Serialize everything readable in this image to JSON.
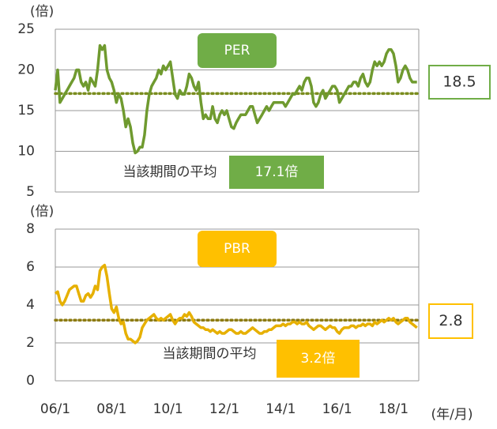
{
  "chart_data": [
    {
      "type": "line",
      "title": "PER",
      "unit_label": "(倍)",
      "color": "#6f9a2f",
      "title_color": "#70ad47",
      "avg_color": "#7a8c1e",
      "ylim": [
        5,
        25
      ],
      "yticks": [
        5,
        10,
        15,
        20,
        25
      ],
      "grid": true,
      "average": 17.1,
      "average_label": "17.1倍",
      "average_caption": "当該期間の平均",
      "latest": 18.5,
      "values": [
        17.5,
        20,
        16,
        16.5,
        17,
        17.5,
        18,
        18.5,
        19,
        20,
        20,
        18.5,
        18,
        18.5,
        17.5,
        19,
        18.5,
        18,
        20,
        23,
        22.5,
        23,
        20,
        19,
        18.5,
        17.5,
        16,
        17,
        16.5,
        15,
        13,
        14,
        13,
        11,
        9.8,
        10,
        10.5,
        10.5,
        12,
        15,
        17,
        18,
        18.5,
        19,
        20,
        19.5,
        20.5,
        20,
        20.5,
        21,
        19,
        17,
        16.5,
        17.5,
        17,
        17,
        18,
        19.5,
        19,
        18,
        17.5,
        18.5,
        16,
        14,
        14.5,
        14,
        14,
        15.5,
        14,
        13.5,
        14.5,
        15,
        14.5,
        15,
        14,
        13,
        12.8,
        13.5,
        14,
        14.5,
        14.5,
        14.5,
        15,
        15.5,
        15.5,
        14.5,
        13.5,
        14,
        14.5,
        15,
        15.5,
        15,
        15.5,
        16,
        16,
        16,
        16,
        16,
        15.5,
        16,
        16.5,
        17,
        17,
        17.5,
        18,
        17.5,
        18.5,
        19,
        19,
        18,
        16,
        15.5,
        16,
        17,
        17.5,
        16.5,
        17,
        17.5,
        18,
        18,
        17.5,
        16,
        16.5,
        17,
        17.5,
        18,
        18,
        18.5,
        18.5,
        18,
        19,
        19.5,
        18.5,
        18,
        18.5,
        20,
        21,
        20.5,
        21,
        20.5,
        21,
        22,
        22.5,
        22.5,
        22,
        20.5,
        18.5,
        19,
        20,
        20.5,
        20,
        19,
        18.5,
        18.5,
        18.5
      ]
    },
    {
      "type": "line",
      "title": "PBR",
      "unit_label": "(倍)",
      "color": "#e6b000",
      "title_color": "#ffc000",
      "avg_color": "#8c7a10",
      "ylim": [
        0,
        8
      ],
      "yticks": [
        0,
        2,
        4,
        6,
        8
      ],
      "grid": true,
      "average": 3.2,
      "average_label": "3.2倍",
      "average_caption": "当該期間の平均",
      "latest": 2.8,
      "x_label": "(年/月)",
      "categories": [
        "06/1",
        null,
        null,
        null,
        null,
        null,
        null,
        null,
        null,
        null,
        null,
        null,
        null,
        null,
        null,
        null,
        null,
        null,
        null,
        null,
        null,
        null,
        null,
        null,
        "08/1",
        null,
        null,
        null,
        null,
        null,
        null,
        null,
        null,
        null,
        null,
        null,
        null,
        null,
        null,
        null,
        null,
        null,
        null,
        null,
        null,
        null,
        null,
        null,
        "10/1",
        null,
        null,
        null,
        null,
        null,
        null,
        null,
        null,
        null,
        null,
        null,
        null,
        null,
        null,
        null,
        null,
        null,
        null,
        null,
        null,
        null,
        null,
        null,
        "12/1",
        null,
        null,
        null,
        null,
        null,
        null,
        null,
        null,
        null,
        null,
        null,
        null,
        null,
        null,
        null,
        null,
        null,
        null,
        null,
        null,
        null,
        null,
        null,
        "14/1",
        null,
        null,
        null,
        null,
        null,
        null,
        null,
        null,
        null,
        null,
        null,
        null,
        null,
        null,
        null,
        null,
        null,
        null,
        null,
        null,
        null,
        null,
        null,
        "16/1",
        null,
        null,
        null,
        null,
        null,
        null,
        null,
        null,
        null,
        null,
        null,
        null,
        null,
        null,
        null,
        null,
        null,
        null,
        null,
        null,
        null,
        null,
        null,
        "18/1",
        null,
        null,
        null,
        null,
        null,
        null,
        null,
        null,
        null,
        null
      ],
      "values": [
        4.6,
        4.7,
        4.2,
        4.0,
        4.2,
        4.5,
        4.8,
        4.9,
        5.0,
        5.0,
        4.6,
        4.2,
        4.2,
        4.5,
        4.6,
        4.4,
        4.6,
        5.0,
        4.8,
        5.8,
        6.0,
        6.1,
        5.5,
        4.6,
        3.8,
        3.6,
        3.9,
        3.3,
        3.0,
        3.1,
        2.5,
        2.2,
        2.2,
        2.1,
        2.0,
        2.1,
        2.3,
        2.8,
        3.0,
        3.2,
        3.3,
        3.4,
        3.5,
        3.3,
        3.2,
        3.3,
        3.2,
        3.3,
        3.4,
        3.5,
        3.2,
        3.0,
        3.2,
        3.3,
        3.3,
        3.5,
        3.4,
        3.6,
        3.4,
        3.1,
        3.0,
        2.9,
        2.8,
        2.8,
        2.7,
        2.7,
        2.6,
        2.7,
        2.6,
        2.5,
        2.6,
        2.5,
        2.5,
        2.6,
        2.7,
        2.7,
        2.6,
        2.5,
        2.5,
        2.6,
        2.5,
        2.5,
        2.6,
        2.7,
        2.8,
        2.7,
        2.6,
        2.5,
        2.5,
        2.6,
        2.6,
        2.7,
        2.7,
        2.8,
        2.9,
        2.9,
        2.9,
        3.0,
        2.9,
        3.0,
        3.0,
        3.1,
        3.1,
        3.0,
        3.1,
        3.0,
        3.0,
        3.1,
        2.9,
        2.8,
        2.7,
        2.8,
        2.9,
        2.9,
        2.8,
        2.7,
        2.8,
        2.9,
        2.8,
        2.8,
        2.6,
        2.5,
        2.7,
        2.8,
        2.8,
        2.8,
        2.9,
        2.9,
        2.8,
        2.9,
        2.9,
        3.0,
        2.9,
        3.0,
        3.0,
        2.9,
        3.1,
        3.0,
        3.1,
        3.2,
        3.1,
        3.2,
        3.3,
        3.2,
        3.3,
        3.1,
        3.0,
        3.1,
        3.2,
        3.3,
        3.3,
        3.1,
        3.0,
        2.9,
        2.8
      ]
    }
  ]
}
